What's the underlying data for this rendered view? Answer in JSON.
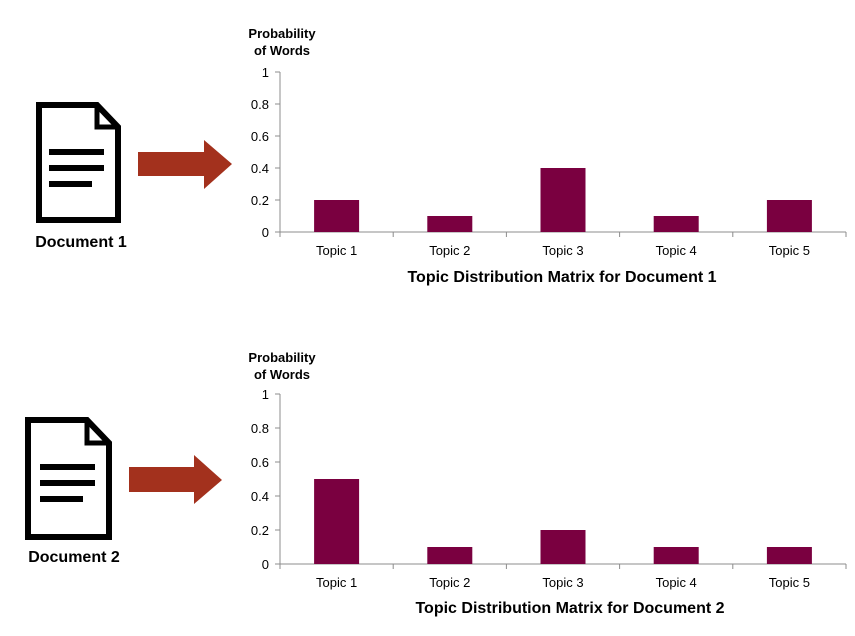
{
  "panels": [
    {
      "document_label": "Document 1",
      "colors": {
        "arrow": "#a3311d",
        "icon": "#000000"
      }
    },
    {
      "document_label": "Document 2",
      "colors": {
        "arrow": "#a3311d",
        "icon": "#000000"
      }
    }
  ],
  "chart_data": [
    {
      "type": "bar",
      "title": "Topic Distribution Matrix for Document 1",
      "ylabel_line1": "Probability",
      "ylabel_line2": "of Words",
      "xlabel": "",
      "categories": [
        "Topic 1",
        "Topic 2",
        "Topic 3",
        "Topic 4",
        "Topic 5"
      ],
      "values": [
        0.2,
        0.1,
        0.4,
        0.1,
        0.2
      ],
      "ylim": [
        0,
        1
      ],
      "yticks": [
        "0",
        "0.2",
        "0.4",
        "0.6",
        "0.8",
        "1"
      ],
      "grid": false,
      "legend": "none",
      "bar_color": "#7a0040"
    },
    {
      "type": "bar",
      "title": "Topic Distribution Matrix for Document 2",
      "ylabel_line1": "Probability",
      "ylabel_line2": "of Words",
      "xlabel": "",
      "categories": [
        "Topic 1",
        "Topic 2",
        "Topic 3",
        "Topic 4",
        "Topic 5"
      ],
      "values": [
        0.5,
        0.1,
        0.2,
        0.1,
        0.1
      ],
      "ylim": [
        0,
        1
      ],
      "yticks": [
        "0",
        "0.2",
        "0.4",
        "0.6",
        "0.8",
        "1"
      ],
      "grid": false,
      "legend": "none",
      "bar_color": "#7a0040"
    }
  ]
}
